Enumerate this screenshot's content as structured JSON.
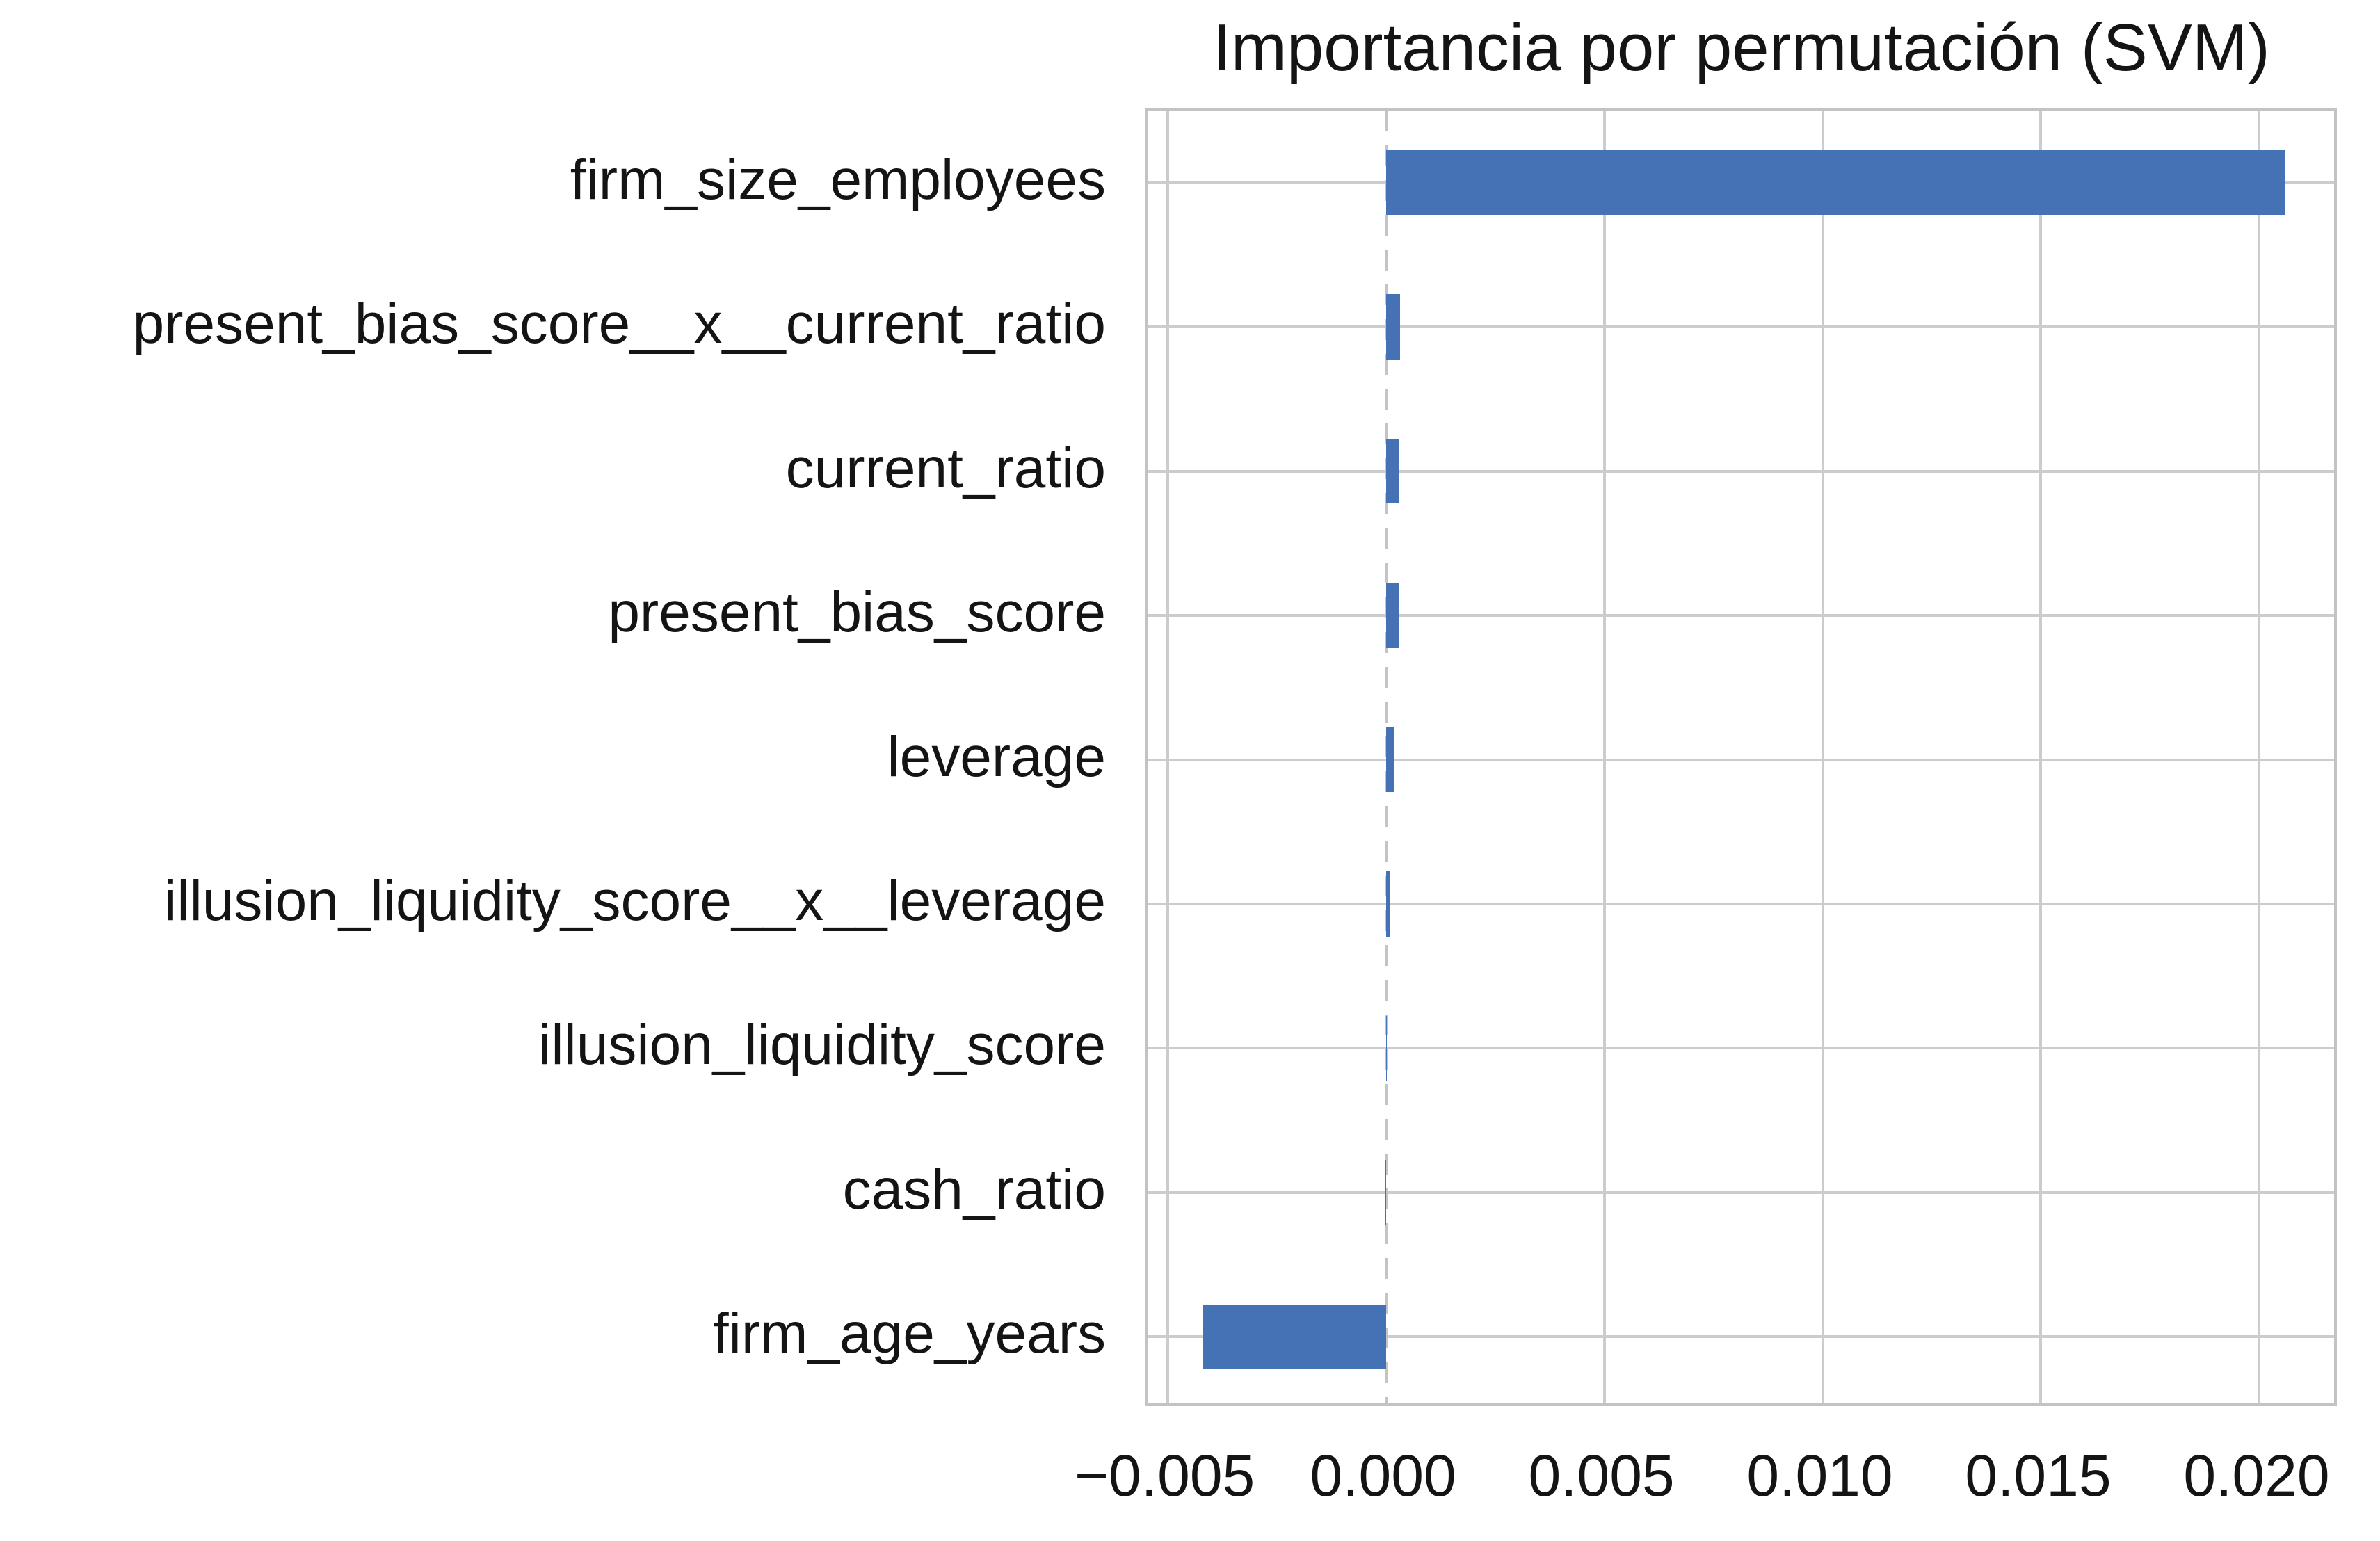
{
  "chart_data": {
    "type": "bar",
    "orientation": "horizontal",
    "title": "Importancia por permutación (SVM)",
    "categories": [
      "firm_size_employees",
      "present_bias_score__x__current_ratio",
      "current_ratio",
      "present_bias_score",
      "leverage",
      "illusion_liquidity_score__x__leverage",
      "illusion_liquidity_score",
      "cash_ratio",
      "firm_age_years"
    ],
    "values": [
      0.0206,
      0.00032,
      0.0003,
      0.0003,
      0.00019,
      0.0001,
      2e-05,
      -2e-05,
      -0.0042
    ],
    "xticks": [
      -0.005,
      0.0,
      0.005,
      0.01,
      0.015,
      0.02
    ],
    "xtick_labels": [
      "−0.005",
      "0.000",
      "0.005",
      "0.010",
      "0.015",
      "0.020"
    ],
    "xlim": [
      -0.00544,
      0.02184
    ],
    "xlabel": "",
    "ylabel": "",
    "grid": true,
    "zero_line_style": "dashed",
    "legend": "none",
    "bar_color": "#4572B4",
    "grid_color": "#cccccc",
    "axes_edge_color": "#c3c3c3",
    "background_color": "#ffffff",
    "text_color": "#141414"
  }
}
